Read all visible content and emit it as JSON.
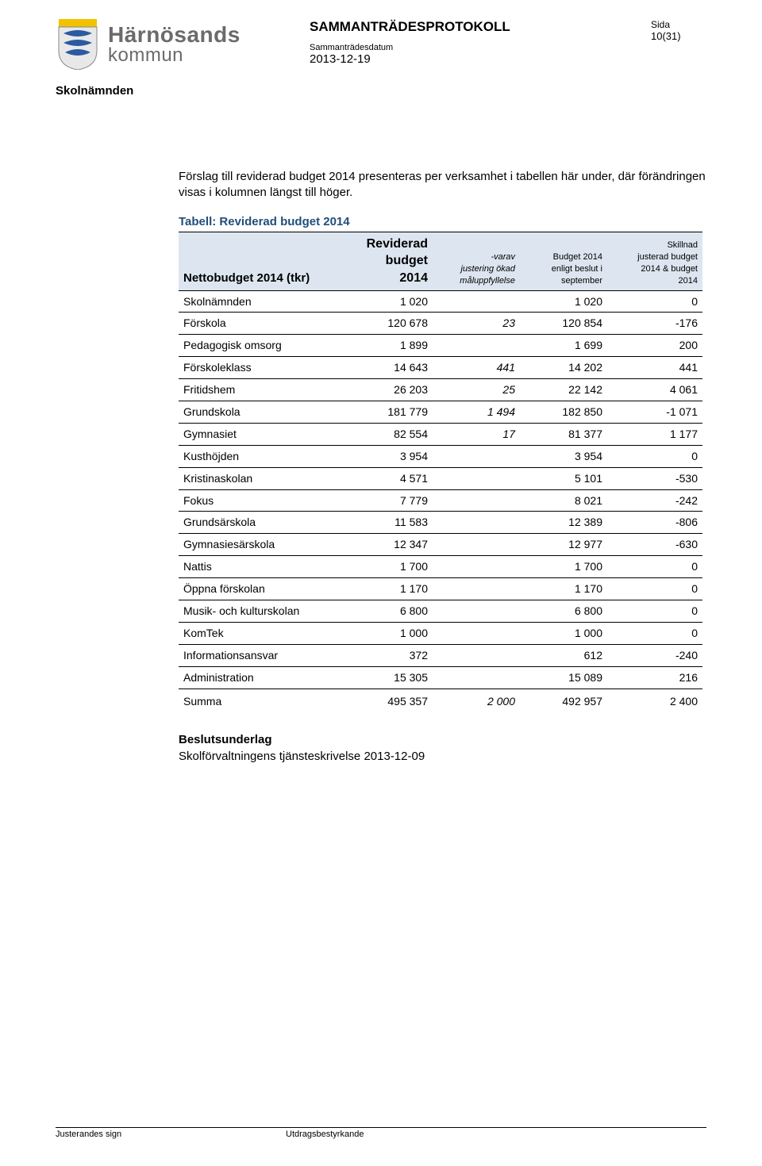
{
  "header": {
    "kommun_name": "Härnösands",
    "kommun_sub": "kommun",
    "protocol_title": "SAMMANTRÄDESPROTOKOLL",
    "date_label": "Sammanträdesdatum",
    "date_value": "2013-12-19",
    "sida_label": "Sida",
    "sida_value": "10(31)",
    "committee": "Skolnämnden"
  },
  "intro_text": "Förslag till reviderad budget 2014 presenteras per verksamhet i tabellen här under, där förändringen visas i kolumnen längst till höger.",
  "table": {
    "title": "Tabell: Reviderad budget 2014",
    "header_bg": "#dde6f0",
    "title_color": "#1f4e79",
    "columns": {
      "c0": "Nettobudget 2014 (tkr)",
      "c1_line1": "Reviderad",
      "c1_line2": "budget",
      "c1_line3": "2014",
      "c2_line1": "-varav",
      "c2_line2": "justering ökad",
      "c2_line3": "måluppfyllelse",
      "c3_line1": "Budget 2014",
      "c3_line2": "enligt beslut i",
      "c3_line3": "september",
      "c4_line1": "Skillnad",
      "c4_line2": "justerad budget",
      "c4_line3": "2014 & budget",
      "c4_line4": "2014"
    },
    "rows": [
      {
        "label": "Skolnämnden",
        "c1": "1 020",
        "c2": "",
        "c3": "1 020",
        "c4": "0"
      },
      {
        "label": "Förskola",
        "c1": "120 678",
        "c2": "23",
        "c3": "120 854",
        "c4": "-176"
      },
      {
        "label": "Pedagogisk omsorg",
        "c1": "1 899",
        "c2": "",
        "c3": "1 699",
        "c4": "200"
      },
      {
        "label": "Förskoleklass",
        "c1": "14 643",
        "c2": "441",
        "c3": "14 202",
        "c4": "441"
      },
      {
        "label": "Fritidshem",
        "c1": "26 203",
        "c2": "25",
        "c3": "22 142",
        "c4": "4 061"
      },
      {
        "label": "Grundskola",
        "c1": "181 779",
        "c2": "1 494",
        "c3": "182 850",
        "c4": "-1 071"
      },
      {
        "label": "Gymnasiet",
        "c1": "82 554",
        "c2": "17",
        "c3": "81 377",
        "c4": "1 177"
      },
      {
        "label": "Kusthöjden",
        "c1": "3 954",
        "c2": "",
        "c3": "3 954",
        "c4": "0"
      },
      {
        "label": "Kristinaskolan",
        "c1": "4 571",
        "c2": "",
        "c3": "5 101",
        "c4": "-530"
      },
      {
        "label": "Fokus",
        "c1": "7 779",
        "c2": "",
        "c3": "8 021",
        "c4": "-242"
      },
      {
        "label": "Grundsärskola",
        "c1": "11 583",
        "c2": "",
        "c3": "12 389",
        "c4": "-806"
      },
      {
        "label": "Gymnasiesärskola",
        "c1": "12 347",
        "c2": "",
        "c3": "12 977",
        "c4": "-630"
      },
      {
        "label": "Nattis",
        "c1": "1 700",
        "c2": "",
        "c3": "1 700",
        "c4": "0"
      },
      {
        "label": "Öppna förskolan",
        "c1": "1 170",
        "c2": "",
        "c3": "1 170",
        "c4": "0"
      },
      {
        "label": "Musik- och kulturskolan",
        "c1": "6 800",
        "c2": "",
        "c3": "6 800",
        "c4": "0"
      },
      {
        "label": "KomTek",
        "c1": "1 000",
        "c2": "",
        "c3": "1 000",
        "c4": "0"
      },
      {
        "label": "Informationsansvar",
        "c1": "372",
        "c2": "",
        "c3": "612",
        "c4": "-240"
      },
      {
        "label": "Administration",
        "c1": "15 305",
        "c2": "",
        "c3": "15 089",
        "c4": "216"
      }
    ],
    "sum": {
      "label": "Summa",
      "c1": "495 357",
      "c2": "2 000",
      "c3": "492 957",
      "c4": "2 400"
    }
  },
  "beslut": {
    "heading": "Beslutsunderlag",
    "text": "Skolförvaltningens tjänsteskrivelse 2013-12-09"
  },
  "footer": {
    "left": "Justerandes sign",
    "right": "Utdragsbestyrkande"
  }
}
